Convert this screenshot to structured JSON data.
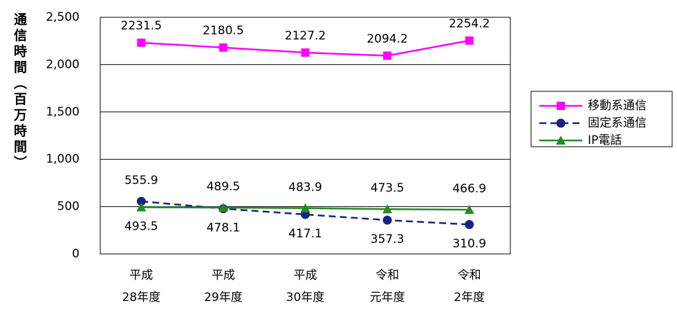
{
  "chart_data": {
    "type": "line",
    "y_label": "通信時間（百万時間）",
    "categories": [
      "平成\n28年度",
      "平成\n29年度",
      "平成\n30年度",
      "令和\n元年度",
      "令和\n2年度"
    ],
    "series": [
      {
        "name": "移動系通信",
        "color": "#ff00ff",
        "marker": "square",
        "dash": false,
        "values": [
          2231.5,
          2180.5,
          2127.2,
          2094.2,
          2254.2
        ]
      },
      {
        "name": "固定系通信",
        "color": "#1a237e",
        "marker": "circle",
        "dash": true,
        "values": [
          555.9,
          478.1,
          417.1,
          357.3,
          310.9
        ]
      },
      {
        "name": "IP電話",
        "color": "#228b22",
        "marker": "triangle",
        "dash": false,
        "values": [
          493.5,
          489.5,
          483.9,
          473.5,
          466.9
        ]
      }
    ],
    "ylim": [
      0,
      2500
    ],
    "yticks": [
      0,
      500,
      {
        "value": 1000,
        "label": "1,000"
      },
      {
        "value": 1500,
        "label": "1,500"
      },
      {
        "value": 2000,
        "label": "2,000"
      },
      {
        "value": 2500,
        "label": "2,500"
      }
    ],
    "grid": true,
    "legend": "right"
  }
}
